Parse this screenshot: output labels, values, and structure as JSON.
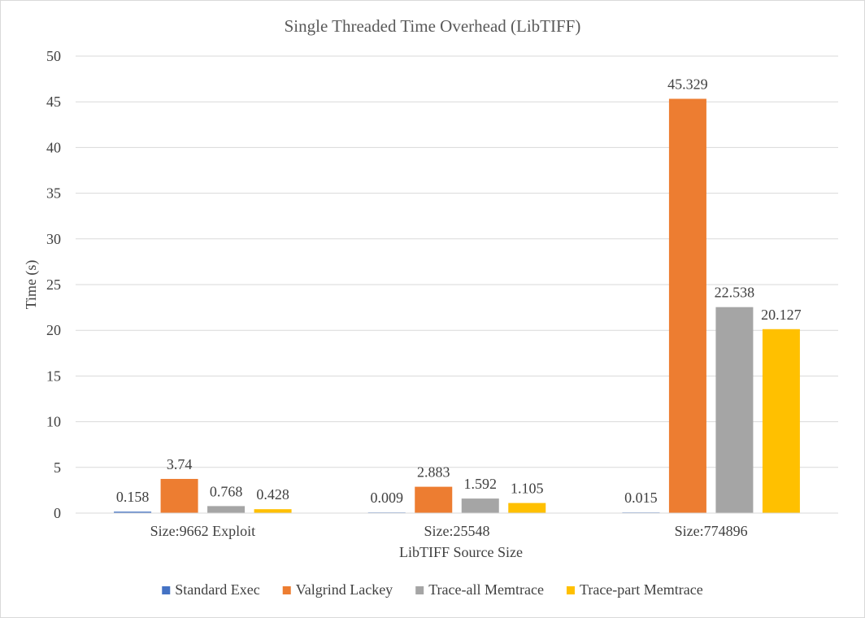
{
  "chart_data": {
    "type": "bar",
    "title": "Single Threaded Time Overhead (LibTIFF)",
    "xlabel": "LibTIFF Source Size",
    "ylabel": "Time (s)",
    "ylim": [
      0,
      50
    ],
    "yticks": [
      0,
      5,
      10,
      15,
      20,
      25,
      30,
      35,
      40,
      45,
      50
    ],
    "categories": [
      "Size:9662 Exploit",
      "Size:25548",
      "Size:774896"
    ],
    "series": [
      {
        "name": "Standard Exec",
        "color": "#4472c4",
        "values": [
          0.158,
          0.009,
          0.015
        ],
        "labels": [
          "0.158",
          "0.009",
          "0.015"
        ]
      },
      {
        "name": "Valgrind Lackey",
        "color": "#ed7d31",
        "values": [
          3.74,
          2.883,
          45.329
        ],
        "labels": [
          "3.74",
          "2.883",
          "45.329"
        ]
      },
      {
        "name": "Trace-all Memtrace",
        "color": "#a5a5a5",
        "values": [
          0.768,
          1.592,
          22.538
        ],
        "labels": [
          "0.768",
          "1.592",
          "22.538"
        ]
      },
      {
        "name": "Trace-part Memtrace",
        "color": "#ffc000",
        "values": [
          0.428,
          1.105,
          20.127
        ],
        "labels": [
          "0.428",
          "1.105",
          "20.127"
        ]
      }
    ],
    "grid": true,
    "legend": "bottom"
  }
}
